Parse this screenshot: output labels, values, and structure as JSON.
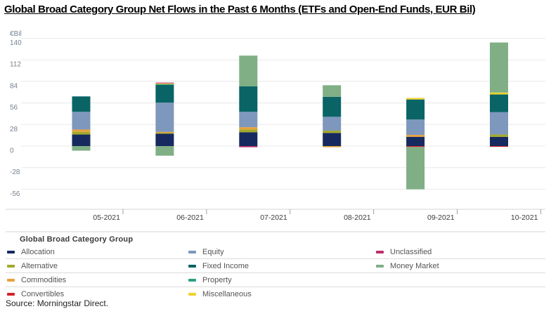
{
  "title": "Global Broad Category Group Net Flows in the Past 6 Months (ETFs and Open-End Funds, EUR Bil)",
  "source": "Source: Morningstar Direct.",
  "legend": {
    "title": "Global Broad Category Group",
    "rows": [
      [
        "Allocation",
        "Equity",
        "Unclassified"
      ],
      [
        "Alternative",
        "Fixed Income",
        "Money Market"
      ],
      [
        "Commodities",
        "Property"
      ],
      [
        "Convertibles",
        "Miscellaneous"
      ]
    ]
  },
  "chart_data": {
    "type": "bar",
    "stacked": true,
    "title": "Global Broad Category Group Net Flows in the Past 6 Months (ETFs and Open-End Funds, EUR Bil)",
    "unit_label": "€Bil",
    "xlabel": "",
    "ylabel": "€Bil",
    "categories": [
      "05-2021",
      "06-2021",
      "07-2021",
      "08-2021",
      "09-2021",
      "10-2021"
    ],
    "y_ticks": [
      140,
      112,
      84,
      56,
      28,
      0,
      -28,
      -56
    ],
    "ylim": [
      -70,
      148
    ],
    "grid": true,
    "legend_position": "bottom",
    "series": [
      {
        "name": "Allocation",
        "color": "#162a5f",
        "values": [
          15,
          16,
          18,
          17,
          12,
          12
        ]
      },
      {
        "name": "Alternative",
        "color": "#a2a92a",
        "values": [
          3.5,
          1.2,
          3.5,
          3,
          0,
          3
        ]
      },
      {
        "name": "Commodities",
        "color": "#e6a23c",
        "values": [
          3,
          1.2,
          3,
          -1.5,
          2.5,
          0
        ]
      },
      {
        "name": "Convertibles",
        "color": "#d2232a",
        "values": [
          0,
          0,
          0,
          0,
          -1.2,
          -1
        ]
      },
      {
        "name": "Equity",
        "color": "#7e97bc",
        "values": [
          23,
          38,
          20,
          18,
          20,
          29
        ]
      },
      {
        "name": "Fixed Income",
        "color": "#0a6466",
        "values": [
          20,
          23,
          33,
          26,
          26,
          23
        ]
      },
      {
        "name": "Property",
        "color": "#2f9e85",
        "values": [
          0,
          1,
          0,
          0,
          0,
          0
        ]
      },
      {
        "name": "Miscellaneous",
        "color": "#efd22e",
        "values": [
          0,
          1,
          0,
          0,
          2,
          2.5
        ]
      },
      {
        "name": "Unclassified",
        "color": "#bc2f6c",
        "values": [
          0,
          1,
          -1.5,
          0,
          0,
          0
        ]
      },
      {
        "name": "Money Market",
        "color": "#80af86",
        "values": [
          -6,
          -12.5,
          40,
          15,
          -55,
          65
        ]
      }
    ]
  }
}
